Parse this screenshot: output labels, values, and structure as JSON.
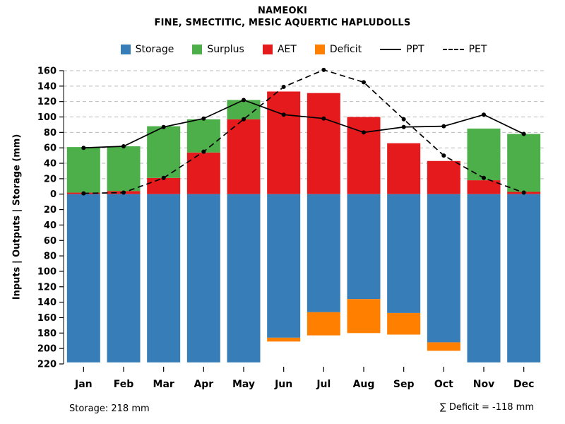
{
  "chart_data": {
    "type": "bar",
    "title": "NAMEOKI",
    "subtitle": "FINE, SMECTITIC, MESIC AQUERTIC HAPLUDOLLS",
    "xlabel": "",
    "ylabel": "Inputs | Outputs | Storage (mm)",
    "categories": [
      "Jan",
      "Feb",
      "Mar",
      "Apr",
      "May",
      "Jun",
      "Jul",
      "Aug",
      "Sep",
      "Oct",
      "Nov",
      "Dec"
    ],
    "ylim": [
      -220,
      160
    ],
    "y_axis": {
      "above_max": 160,
      "below_max": 220,
      "tick_step": 20
    },
    "grid": "dashed horizontal gridlines above zero only",
    "legend_position": "top",
    "series": [
      {
        "name": "Storage",
        "marker": "square",
        "color": "#377EB8",
        "role": "bar-below-zero",
        "values": [
          218,
          218,
          218,
          218,
          218,
          186,
          153,
          136,
          154,
          192,
          218,
          218
        ]
      },
      {
        "name": "Surplus",
        "marker": "square",
        "color": "#4DAF4A",
        "role": "bar-above-stacked-on-aet",
        "values": [
          59,
          58,
          67,
          43,
          25,
          0,
          0,
          0,
          0,
          0,
          67,
          75
        ]
      },
      {
        "name": "AET",
        "marker": "square",
        "color": "#E41A1C",
        "role": "bar-above-base",
        "values": [
          2,
          4,
          21,
          54,
          97,
          133,
          131,
          100,
          66,
          43,
          18,
          3
        ]
      },
      {
        "name": "Deficit",
        "marker": "square",
        "color": "#FF7F00",
        "role": "bar-below-stacked-on-storage",
        "values": [
          0,
          0,
          0,
          0,
          0,
          5,
          30,
          44,
          28,
          11,
          0,
          0
        ]
      },
      {
        "name": "PPT",
        "marker": "line",
        "color": "#000000",
        "role": "line-solid-with-points",
        "values": [
          60,
          62,
          87,
          98,
          122,
          103,
          98,
          80,
          87,
          88,
          103,
          78
        ]
      },
      {
        "name": "PET",
        "marker": "dashed-line",
        "color": "#000000",
        "role": "line-dashed-with-points",
        "values": [
          1,
          2,
          21,
          55,
          97,
          139,
          161,
          145,
          97,
          50,
          21,
          2
        ]
      }
    ]
  },
  "annotations": {
    "storage": "Storage: 218 mm",
    "deficit": "∑ Deficit = -118 mm"
  },
  "colors": {
    "grid": "#B9B9B9",
    "axis": "#000000",
    "background": "#FFFFFF"
  }
}
